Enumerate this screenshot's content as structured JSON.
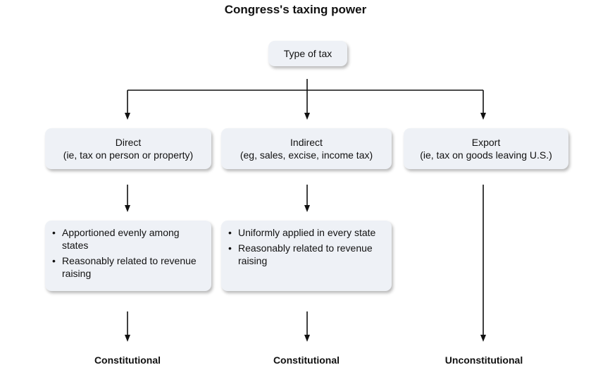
{
  "title": "Congress's taxing power",
  "root": {
    "label": "Type of tax"
  },
  "categories": [
    {
      "name": "Direct",
      "detail": "(ie, tax on person or property)"
    },
    {
      "name": "Indirect",
      "detail": "(eg, sales, excise, income tax)"
    },
    {
      "name": "Export",
      "detail": "(ie, tax on goods leaving U.S.)"
    }
  ],
  "requirements": [
    {
      "items": [
        "Apportioned evenly among states",
        "Reasonably related to revenue raising"
      ]
    },
    {
      "items": [
        "Uniformly applied in every state",
        "Reasonably related to revenue raising"
      ]
    }
  ],
  "bullet_char": "•",
  "outcomes": [
    "Constitutional",
    "Constitutional",
    "Unconstitutional"
  ]
}
